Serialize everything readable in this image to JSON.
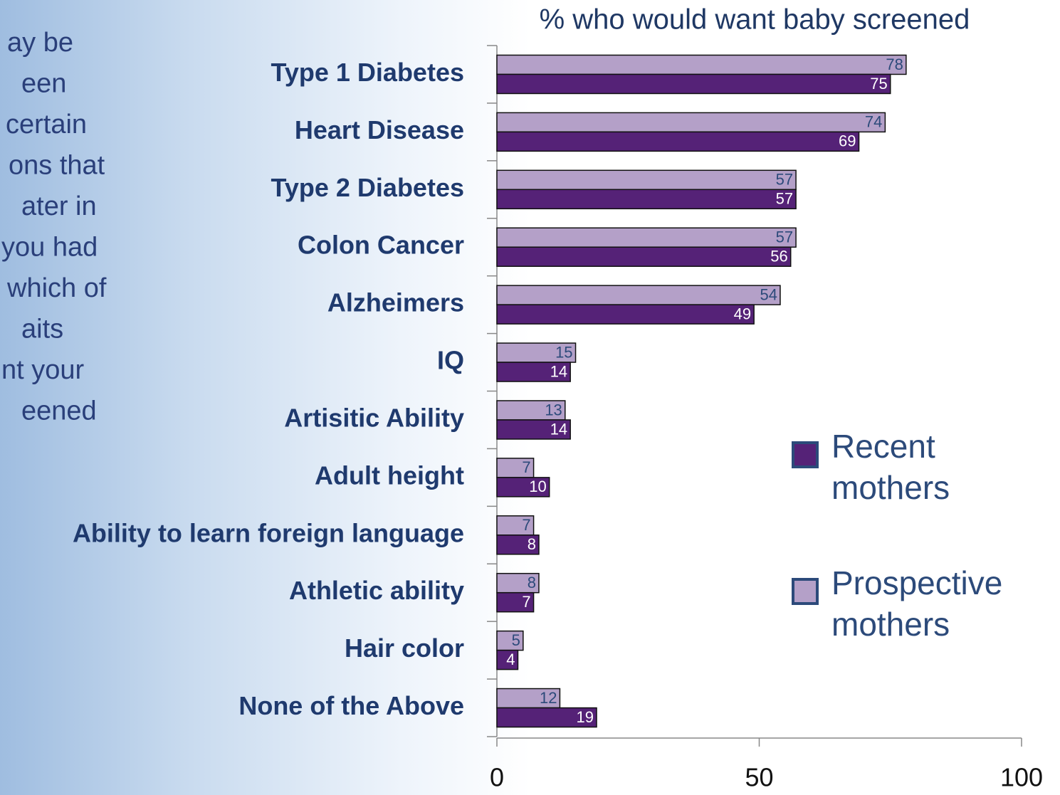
{
  "side_text": [
    "ay be",
    "een",
    "certain",
    "ons that",
    "ater in",
    "you had",
    "which of",
    "aits",
    "nt your",
    "eened"
  ],
  "chart_data": {
    "type": "barh",
    "title": "% who would want baby screened",
    "categories": [
      "Type 1 Diabetes",
      "Heart Disease",
      "Type 2 Diabetes",
      "Colon Cancer",
      "Alzheimers",
      "IQ",
      "Artisitic Ability",
      "Adult height",
      "Ability to learn foreign language",
      "Athletic ability",
      "Hair color",
      "None of the Above"
    ],
    "series": [
      {
        "name": "Recent mothers",
        "color": "#552277",
        "values": [
          75,
          69,
          57,
          56,
          49,
          14,
          14,
          10,
          8,
          7,
          4,
          19
        ]
      },
      {
        "name": "Prospective mothers",
        "color": "#b4a0c8",
        "values": [
          78,
          74,
          57,
          57,
          54,
          15,
          13,
          7,
          7,
          8,
          5,
          12
        ]
      }
    ],
    "xlim": [
      0,
      100
    ],
    "xticks": [
      0,
      50,
      100
    ],
    "legend": "right"
  }
}
